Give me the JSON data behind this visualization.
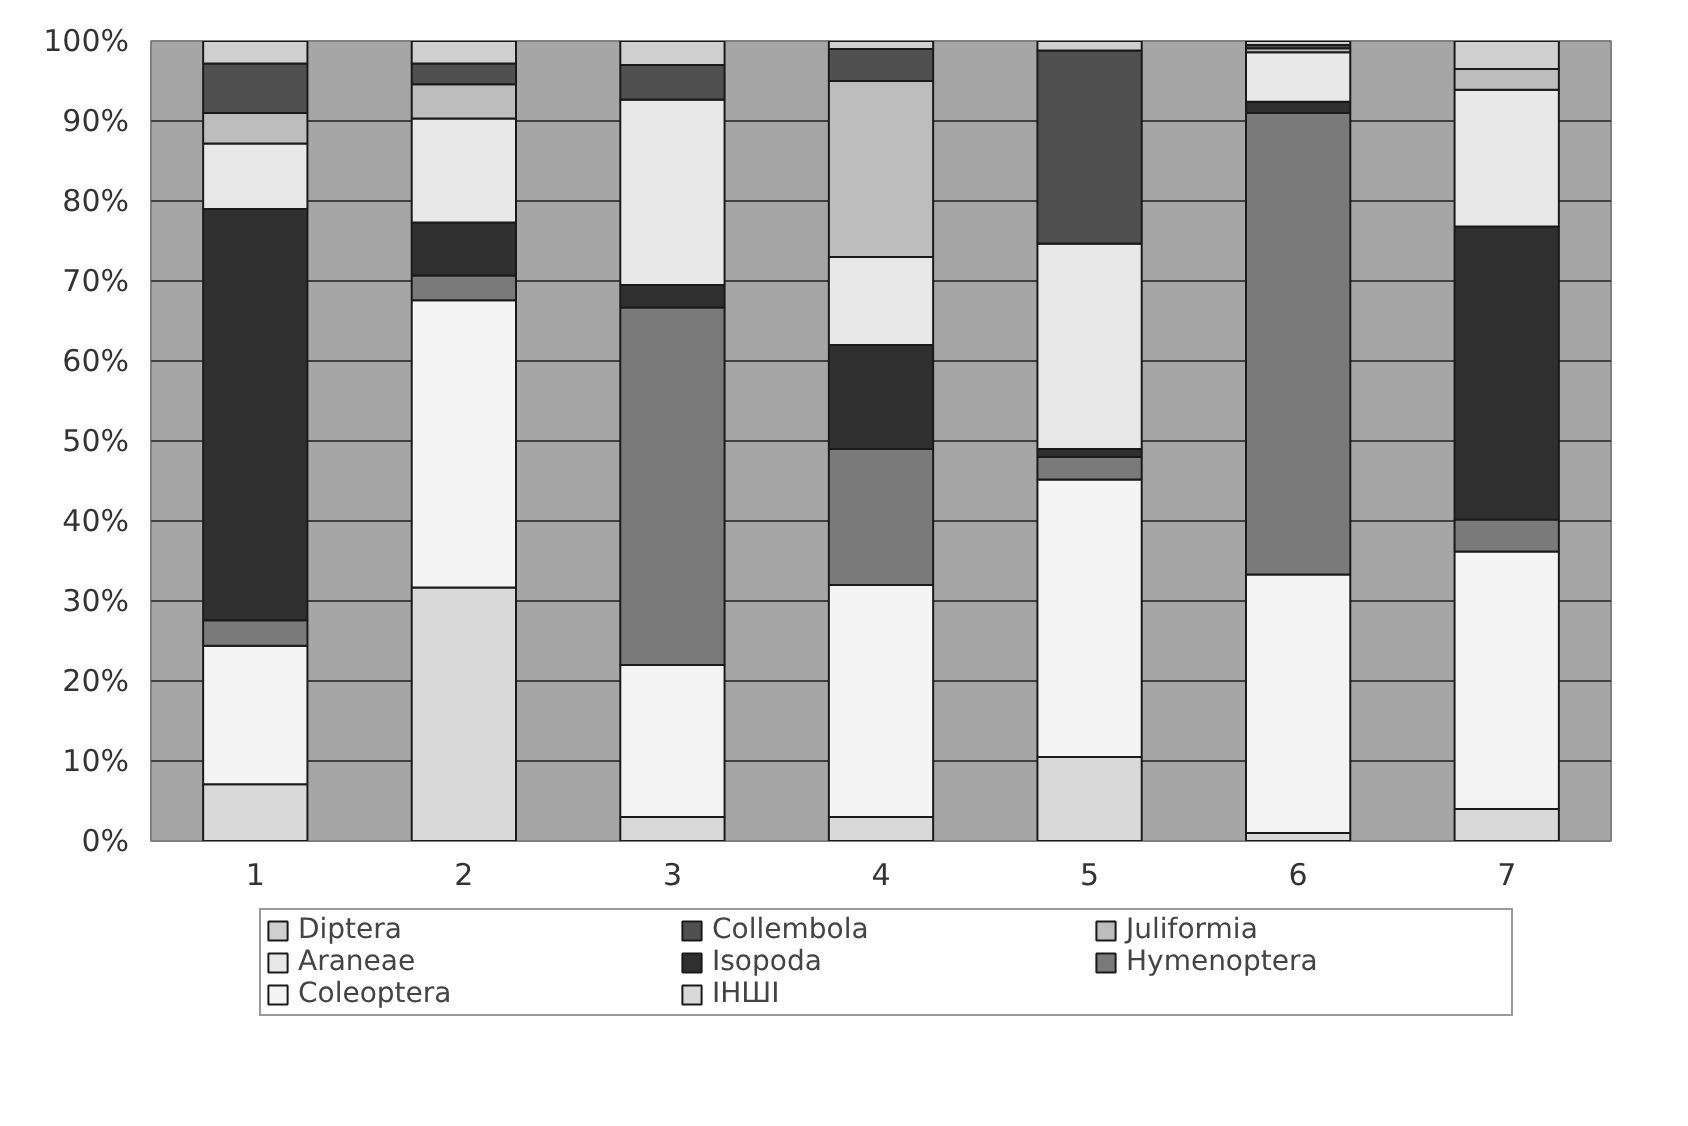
{
  "chart_data": {
    "type": "bar",
    "stacked": true,
    "categories": [
      "1",
      "2",
      "3",
      "4",
      "5",
      "6",
      "7"
    ],
    "ylim": [
      0,
      100
    ],
    "yticks": [
      {
        "value": 0,
        "label": "0%"
      },
      {
        "value": 10,
        "label": "10%"
      },
      {
        "value": 20,
        "label": "20%"
      },
      {
        "value": 30,
        "label": "30%"
      },
      {
        "value": 40,
        "label": "40%"
      },
      {
        "value": 50,
        "label": "50%"
      },
      {
        "value": 60,
        "label": "60%"
      },
      {
        "value": 70,
        "label": "70%"
      },
      {
        "value": 80,
        "label": "80%"
      },
      {
        "value": 90,
        "label": "90%"
      },
      {
        "value": 100,
        "label": "100%"
      }
    ],
    "grid": "y",
    "legend": "bottom",
    "series": [
      {
        "name": "ІНШІ",
        "color": "#d9d9d9",
        "values": [
          7.1,
          31.7,
          3,
          3,
          10.5,
          1,
          4
        ]
      },
      {
        "name": "Coleoptera",
        "color": "#f4f4f4",
        "values": [
          17.3,
          35.9,
          19,
          29,
          34.7,
          32.3,
          32.2
        ]
      },
      {
        "name": "Hymenoptera",
        "color": "#7a7a7a",
        "values": [
          3.2,
          3.1,
          44.7,
          17,
          2.8,
          57.7,
          4
        ]
      },
      {
        "name": "Isopoda",
        "color": "#303030",
        "values": [
          51.4,
          6.6,
          2.8,
          13,
          1,
          1.4,
          36.6
        ]
      },
      {
        "name": "Araneae",
        "color": "#e8e8e8",
        "values": [
          8.2,
          13,
          23.2,
          11,
          25.7,
          6.2,
          17.1
        ]
      },
      {
        "name": "Juliformia",
        "color": "#bdbdbd",
        "values": [
          3.8,
          4.3,
          0,
          22,
          0,
          0.5,
          2.6
        ]
      },
      {
        "name": "Collembola",
        "color": "#505050",
        "values": [
          6.2,
          2.6,
          4.3,
          4,
          24.1,
          0.4,
          0
        ]
      },
      {
        "name": "Diptera",
        "color": "#cfcfcf",
        "values": [
          2.8,
          2.8,
          3,
          1,
          1.2,
          0.5,
          3.5
        ]
      }
    ]
  }
}
